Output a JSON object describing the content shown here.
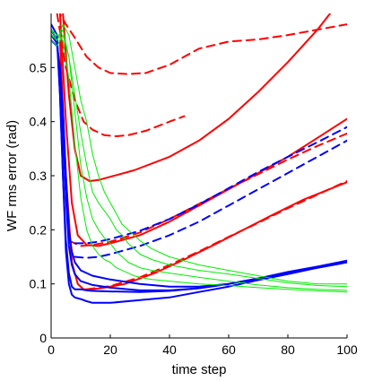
{
  "chart_data": {
    "type": "line",
    "title": "",
    "xlabel": "time step",
    "ylabel": "WF rms error (rad)",
    "xlim": [
      0,
      100
    ],
    "ylim": [
      0,
      0.6
    ],
    "xticks": [
      0,
      20,
      40,
      60,
      80,
      100
    ],
    "yticks": [
      0,
      0.1,
      0.2,
      0.3,
      0.4,
      0.5
    ],
    "xtick_labels": [
      "0",
      "20",
      "40",
      "60",
      "80",
      "100"
    ],
    "ytick_labels": [
      "0",
      "0.1",
      "0.2",
      "0.3",
      "0.4",
      "0.5"
    ],
    "grid": false,
    "legend": "none",
    "colors": {
      "red": "#ff0000",
      "blue": "#0000ff",
      "green": "#00ee00",
      "axis": "#000000"
    },
    "series": [
      {
        "color": "red",
        "dash": "dashed",
        "width": 2,
        "x": [
          2,
          5,
          8,
          12,
          16,
          20,
          26,
          32,
          40,
          50,
          60,
          70,
          80,
          90,
          100
        ],
        "y": [
          0.61,
          0.58,
          0.555,
          0.52,
          0.5,
          0.49,
          0.488,
          0.49,
          0.505,
          0.535,
          0.548,
          0.552,
          0.56,
          0.57,
          0.58
        ]
      },
      {
        "color": "red",
        "dash": "dashed",
        "width": 2,
        "x": [
          2,
          5,
          8,
          11,
          14,
          18,
          22,
          26,
          32,
          40,
          45
        ],
        "y": [
          0.6,
          0.5,
          0.44,
          0.4,
          0.385,
          0.375,
          0.373,
          0.375,
          0.383,
          0.4,
          0.41
        ]
      },
      {
        "color": "red",
        "dash": "solid",
        "width": 2,
        "x": [
          4,
          6,
          8,
          10,
          13,
          16,
          20,
          28,
          40,
          50,
          60,
          70,
          80,
          90,
          95,
          98
        ],
        "y": [
          0.6,
          0.45,
          0.35,
          0.3,
          0.29,
          0.292,
          0.298,
          0.31,
          0.335,
          0.365,
          0.405,
          0.455,
          0.51,
          0.57,
          0.605,
          0.62
        ]
      },
      {
        "color": "red",
        "dash": "solid",
        "width": 2,
        "x": [
          3,
          5,
          7,
          9,
          12,
          16,
          20,
          30,
          40,
          50,
          60,
          70,
          80,
          90,
          100
        ],
        "y": [
          0.6,
          0.4,
          0.25,
          0.19,
          0.172,
          0.17,
          0.175,
          0.19,
          0.215,
          0.245,
          0.275,
          0.305,
          0.335,
          0.37,
          0.405
        ]
      },
      {
        "color": "red",
        "dash": "dashed",
        "width": 2,
        "x": [
          6,
          10,
          14,
          20,
          30,
          40,
          50,
          60,
          70,
          80,
          90,
          100
        ],
        "y": [
          0.18,
          0.17,
          0.172,
          0.178,
          0.195,
          0.22,
          0.248,
          0.276,
          0.303,
          0.33,
          0.355,
          0.378
        ]
      },
      {
        "color": "red",
        "dash": "solid",
        "width": 2,
        "x": [
          3,
          5,
          7,
          9,
          11,
          14,
          18,
          25,
          35,
          45,
          55,
          65,
          75,
          85,
          100
        ],
        "y": [
          0.55,
          0.3,
          0.14,
          0.1,
          0.09,
          0.09,
          0.093,
          0.1,
          0.12,
          0.145,
          0.172,
          0.2,
          0.228,
          0.255,
          0.288
        ]
      },
      {
        "color": "red",
        "dash": "dashed",
        "width": 2,
        "x": [
          12,
          20,
          30,
          40,
          50,
          60,
          70,
          80,
          90,
          100
        ],
        "y": [
          0.09,
          0.096,
          0.112,
          0.135,
          0.16,
          0.187,
          0.213,
          0.24,
          0.265,
          0.29
        ]
      },
      {
        "color": "blue",
        "dash": "dashed",
        "width": 2,
        "x": [
          8,
          12,
          16,
          20,
          30,
          40,
          50,
          60,
          70,
          80,
          90,
          100
        ],
        "y": [
          0.175,
          0.175,
          0.178,
          0.183,
          0.198,
          0.22,
          0.247,
          0.277,
          0.307,
          0.335,
          0.362,
          0.39
        ]
      },
      {
        "color": "blue",
        "dash": "dashed",
        "width": 2,
        "x": [
          8,
          12,
          16,
          20,
          30,
          40,
          50,
          60,
          70,
          80,
          90,
          100
        ],
        "y": [
          0.15,
          0.148,
          0.15,
          0.155,
          0.17,
          0.19,
          0.215,
          0.245,
          0.275,
          0.305,
          0.335,
          0.365
        ]
      },
      {
        "color": "blue",
        "dash": "solid",
        "width": 2,
        "x": [
          0,
          2,
          3,
          4,
          5,
          6,
          7,
          8,
          10,
          14,
          20,
          30,
          40,
          50,
          60,
          70,
          80,
          90,
          100
        ],
        "y": [
          0.55,
          0.54,
          0.5,
          0.42,
          0.3,
          0.2,
          0.16,
          0.14,
          0.125,
          0.115,
          0.108,
          0.1,
          0.095,
          0.095,
          0.1,
          0.11,
          0.12,
          0.13,
          0.14
        ]
      },
      {
        "color": "blue",
        "dash": "solid",
        "width": 2,
        "x": [
          0,
          2,
          3,
          4,
          5,
          6,
          7,
          8,
          10,
          14,
          20,
          30,
          40,
          50,
          60,
          70,
          80,
          90,
          100
        ],
        "y": [
          0.56,
          0.545,
          0.49,
          0.38,
          0.26,
          0.17,
          0.135,
          0.118,
          0.105,
          0.098,
          0.093,
          0.088,
          0.088,
          0.092,
          0.1,
          0.11,
          0.122,
          0.132,
          0.143
        ]
      },
      {
        "color": "blue",
        "dash": "solid",
        "width": 2,
        "x": [
          0,
          2,
          3,
          4,
          5,
          6,
          7,
          8,
          10,
          12,
          14,
          20,
          30,
          40,
          50,
          60,
          70,
          80,
          90,
          100
        ],
        "y": [
          0.57,
          0.55,
          0.45,
          0.3,
          0.18,
          0.12,
          0.095,
          0.09,
          0.09,
          0.088,
          0.087,
          0.086,
          0.085,
          0.087,
          0.092,
          0.1,
          0.11,
          0.12,
          0.13,
          0.14
        ]
      },
      {
        "color": "blue",
        "dash": "solid",
        "width": 2,
        "x": [
          0,
          2,
          3,
          4,
          5,
          6,
          7,
          8,
          10,
          12,
          14,
          20,
          30,
          40,
          50,
          60,
          70,
          80,
          90,
          100
        ],
        "y": [
          0.58,
          0.56,
          0.45,
          0.3,
          0.16,
          0.1,
          0.08,
          0.075,
          0.072,
          0.068,
          0.065,
          0.065,
          0.07,
          0.075,
          0.085,
          0.095,
          0.107,
          0.118,
          0.13,
          0.14
        ]
      },
      {
        "color": "green",
        "dash": "solid",
        "width": 1,
        "x": [
          0,
          2,
          4,
          6,
          8,
          10,
          12,
          14,
          16,
          18,
          20,
          22,
          24,
          26,
          28,
          30,
          34,
          40,
          50,
          60,
          70,
          80,
          90,
          100
        ],
        "y": [
          0.57,
          0.55,
          0.58,
          0.56,
          0.5,
          0.44,
          0.4,
          0.34,
          0.3,
          0.27,
          0.25,
          0.23,
          0.21,
          0.2,
          0.19,
          0.18,
          0.165,
          0.15,
          0.135,
          0.125,
          0.115,
          0.105,
          0.1,
          0.1
        ]
      },
      {
        "color": "green",
        "dash": "solid",
        "width": 1,
        "x": [
          0,
          2,
          4,
          6,
          8,
          10,
          12,
          14,
          16,
          18,
          20,
          22,
          24,
          26,
          28,
          30,
          34,
          40,
          50,
          60,
          70,
          80,
          90,
          100
        ],
        "y": [
          0.55,
          0.54,
          0.56,
          0.52,
          0.45,
          0.38,
          0.32,
          0.27,
          0.25,
          0.235,
          0.22,
          0.2,
          0.19,
          0.175,
          0.165,
          0.155,
          0.145,
          0.135,
          0.125,
          0.118,
          0.11,
          0.102,
          0.097,
          0.095
        ]
      },
      {
        "color": "green",
        "dash": "solid",
        "width": 1,
        "x": [
          0,
          2,
          4,
          6,
          8,
          10,
          12,
          14,
          16,
          18,
          20,
          22,
          24,
          26,
          28,
          30,
          34,
          40,
          50,
          60,
          70,
          80,
          90,
          100
        ],
        "y": [
          0.56,
          0.55,
          0.57,
          0.52,
          0.42,
          0.32,
          0.26,
          0.22,
          0.2,
          0.185,
          0.175,
          0.16,
          0.15,
          0.14,
          0.135,
          0.13,
          0.125,
          0.12,
          0.112,
          0.105,
          0.098,
          0.093,
          0.09,
          0.088
        ]
      },
      {
        "color": "green",
        "dash": "solid",
        "width": 1,
        "x": [
          0,
          2,
          4,
          6,
          8,
          10,
          12,
          14,
          16,
          18,
          20,
          22,
          24,
          26,
          28,
          30,
          34,
          40,
          50,
          60,
          70,
          80,
          90,
          100
        ],
        "y": [
          0.57,
          0.56,
          0.55,
          0.48,
          0.36,
          0.26,
          0.2,
          0.17,
          0.155,
          0.145,
          0.14,
          0.13,
          0.125,
          0.12,
          0.115,
          0.112,
          0.108,
          0.105,
          0.1,
          0.097,
          0.093,
          0.09,
          0.087,
          0.085
        ]
      }
    ]
  }
}
